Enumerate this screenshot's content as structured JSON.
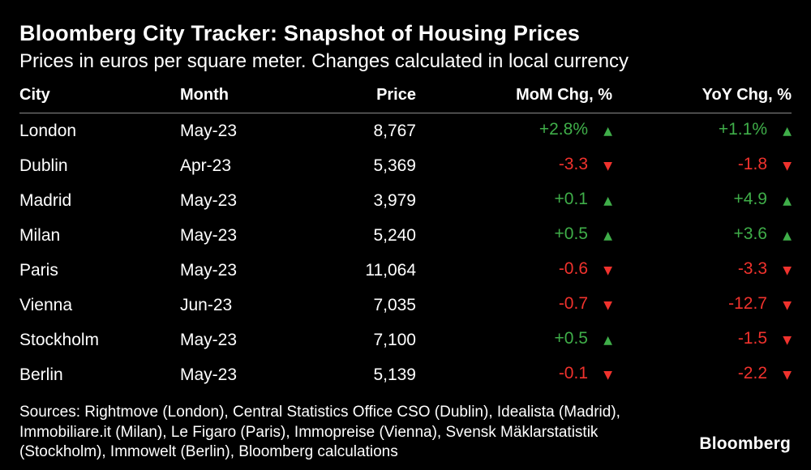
{
  "header": {
    "title": "Bloomberg City Tracker: Snapshot of Housing Prices",
    "subtitle": "Prices in euros per square meter. Changes calculated in local currency"
  },
  "chart_data": {
    "type": "table",
    "title": "Bloomberg City Tracker: Snapshot of Housing Prices",
    "columns": [
      "City",
      "Month",
      "Price",
      "MoM Chg, %",
      "YoY Chg, %"
    ],
    "rows": [
      {
        "city": "London",
        "month": "May-23",
        "price": "8,767",
        "mom": "+2.8%",
        "mom_dir": "up",
        "yoy": "+1.1%",
        "yoy_dir": "up"
      },
      {
        "city": "Dublin",
        "month": "Apr-23",
        "price": "5,369",
        "mom": "-3.3",
        "mom_dir": "down",
        "yoy": "-1.8",
        "yoy_dir": "down"
      },
      {
        "city": "Madrid",
        "month": "May-23",
        "price": "3,979",
        "mom": "+0.1",
        "mom_dir": "up",
        "yoy": "+4.9",
        "yoy_dir": "up"
      },
      {
        "city": "Milan",
        "month": "May-23",
        "price": "5,240",
        "mom": "+0.5",
        "mom_dir": "up",
        "yoy": "+3.6",
        "yoy_dir": "up"
      },
      {
        "city": "Paris",
        "month": "May-23",
        "price": "11,064",
        "mom": "-0.6",
        "mom_dir": "down",
        "yoy": "-3.3",
        "yoy_dir": "down"
      },
      {
        "city": "Vienna",
        "month": "Jun-23",
        "price": "7,035",
        "mom": "-0.7",
        "mom_dir": "down",
        "yoy": "-12.7",
        "yoy_dir": "down"
      },
      {
        "city": "Stockholm",
        "month": "May-23",
        "price": "7,100",
        "mom": "+0.5",
        "mom_dir": "up",
        "yoy": "-1.5",
        "yoy_dir": "down"
      },
      {
        "city": "Berlin",
        "month": "May-23",
        "price": "5,139",
        "mom": "-0.1",
        "mom_dir": "down",
        "yoy": "-2.2",
        "yoy_dir": "down"
      }
    ]
  },
  "footer": {
    "sources": "Sources: Rightmove (London), Central Statistics Office CSO (Dublin), Idealista (Madrid), Immobiliare.it (Milan), Le Figaro (Paris), Immopreise (Vienna), Svensk Mäklarstatistik (Stockholm), Immowelt (Berlin), Bloomberg calculations",
    "logo": "Bloomberg"
  },
  "icons": {
    "up": "▲",
    "down": "▼"
  },
  "colors": {
    "background": "#000000",
    "text": "#ffffff",
    "positive": "#3fae49",
    "negative": "#f0322d",
    "header_rule": "#8a8a8a"
  }
}
